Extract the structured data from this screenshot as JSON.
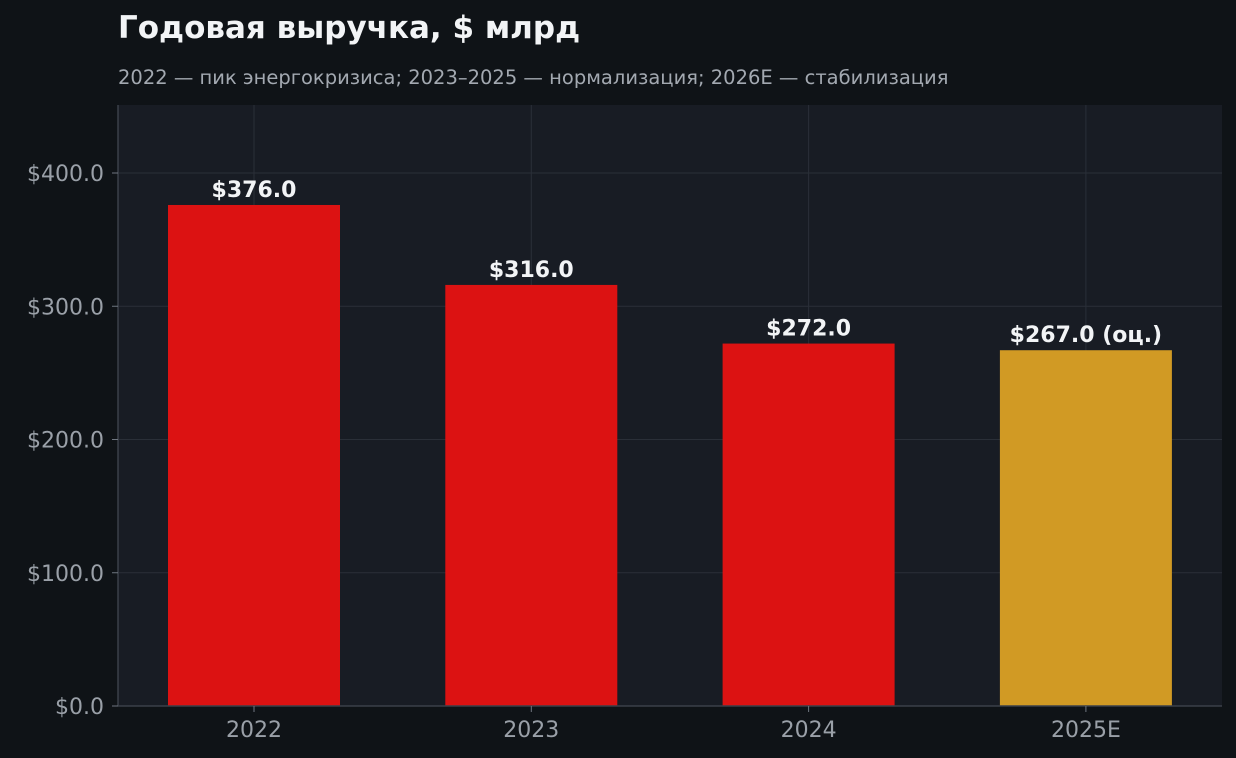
{
  "chart_data": {
    "type": "bar",
    "title": "Годовая выручка, $ млрд",
    "subtitle": "2022 — пик энергокризиса; 2023–2025 — нормализация; 2026E — стабилизация",
    "xlabel": "",
    "ylabel": "",
    "categories": [
      "2022",
      "2023",
      "2024",
      "2025E"
    ],
    "values": [
      376.0,
      316.0,
      272.0,
      267.0
    ],
    "value_labels": [
      "$376.0",
      "$316.0",
      "$272.0",
      "$267.0 (оц.)"
    ],
    "ylim": [
      0,
      450
    ],
    "yticks": [
      0,
      100,
      200,
      300,
      400
    ],
    "ytick_labels": [
      "$0.0",
      "$100.0",
      "$200.0",
      "$300.0",
      "$400.0"
    ],
    "grid": true,
    "legend": "none",
    "colors": {
      "actual": "#dc1212",
      "estimate": "#d19a24",
      "plot_background": "#181c24",
      "page_background": "#0f1317",
      "grid": "#2a2f38"
    },
    "bar_kinds": [
      "actual",
      "actual",
      "actual",
      "estimate"
    ]
  }
}
